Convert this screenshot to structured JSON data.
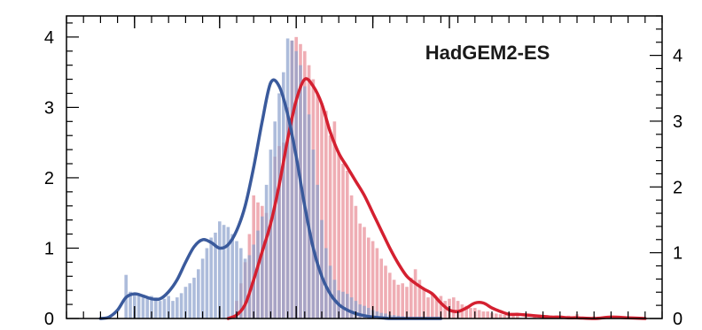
{
  "chart_data": {
    "type": "bar",
    "title": "HadGEM2-ES",
    "xlabel": "",
    "ylabel": "",
    "ylim": [
      0,
      4.3
    ],
    "y_right_lim": [
      0,
      4.6
    ],
    "y_ticks": [
      0,
      1,
      2,
      3,
      4
    ],
    "y_tick_labels": [
      "0",
      "1",
      "2",
      "3",
      "4"
    ],
    "y_right_ticks": [
      0,
      1,
      2,
      3,
      4
    ],
    "y_right_tick_labels": [
      "0",
      "1",
      "2",
      "3",
      "4"
    ],
    "xlim": [
      0,
      35
    ],
    "x_ticks_major": [
      4,
      9,
      13.5,
      18,
      22.5
    ],
    "x_ticks_minor_step": 1,
    "grid": false,
    "colors": {
      "red_series": "#d42030",
      "red_bars": "#e88a94",
      "blue_series": "#3a5a9c",
      "blue_bars": "#8aa0cc",
      "frame": "#000000"
    },
    "series": [
      {
        "kind": "histogram",
        "color_key": "blue",
        "x": [
          3.5,
          3.75,
          4,
          4.25,
          4.5,
          4.75,
          5,
          5.25,
          5.5,
          5.75,
          6,
          6.25,
          6.5,
          6.75,
          7,
          7.25,
          7.5,
          7.75,
          8,
          8.25,
          8.5,
          8.75,
          9,
          9.25,
          9.5,
          9.75,
          10,
          10.25,
          10.5,
          10.75,
          11,
          11.25,
          11.5,
          11.75,
          12,
          12.25,
          12.5,
          12.75,
          13,
          13.25,
          13.5,
          13.75,
          14,
          14.25,
          14.5,
          14.75,
          15,
          15.25,
          15.5,
          15.75,
          16,
          16.25,
          16.5,
          16.75,
          17,
          17.25,
          17.5,
          17.75,
          18,
          18.25,
          18.5,
          18.75,
          19,
          19.25,
          19.5,
          19.75,
          20
        ],
        "values": [
          0.62,
          0.38,
          0.35,
          0.32,
          0.3,
          0.28,
          0.32,
          0.3,
          0.25,
          0.28,
          0.32,
          0.25,
          0.3,
          0.36,
          0.45,
          0.5,
          0.58,
          0.7,
          0.85,
          1.0,
          1.15,
          1.22,
          1.38,
          1.33,
          1.3,
          1.2,
          1.1,
          1.0,
          0.85,
          0.9,
          1.05,
          1.25,
          1.45,
          1.9,
          2.4,
          2.8,
          3.2,
          3.5,
          3.98,
          3.95,
          3.8,
          3.6,
          3.3,
          2.9,
          2.4,
          1.9,
          1.4,
          1.0,
          0.75,
          0.55,
          0.4,
          0.38,
          0.35,
          0.3,
          0.25,
          0.2,
          0.18,
          0.15,
          0.12,
          0.1,
          0.08,
          0.07,
          0.05,
          0.05,
          0.04,
          0.03,
          0.02
        ]
      },
      {
        "kind": "histogram",
        "color_key": "red",
        "x": [
          10,
          10.25,
          10.5,
          10.75,
          11,
          11.25,
          11.5,
          11.75,
          12,
          12.25,
          12.5,
          12.75,
          13,
          13.25,
          13.5,
          13.75,
          14,
          14.25,
          14.5,
          14.75,
          15,
          15.25,
          15.5,
          15.75,
          16,
          16.25,
          16.5,
          16.75,
          17,
          17.25,
          17.5,
          17.75,
          18,
          18.25,
          18.5,
          18.75,
          19,
          19.25,
          19.5,
          19.75,
          20,
          20.25,
          20.5,
          20.75,
          21,
          21.25,
          21.5,
          21.75,
          22,
          22.25,
          22.5,
          22.75,
          23,
          23.25,
          23.5,
          23.75,
          24,
          24.25,
          24.5,
          24.75,
          25,
          25.25,
          25.5,
          25.75,
          26,
          26.25,
          26.5,
          27,
          27.5,
          28,
          28.5,
          29,
          29.5,
          30,
          31,
          32
        ],
        "values": [
          0.25,
          0.5,
          0.8,
          1.2,
          1.75,
          1.65,
          1.6,
          1.5,
          1.4,
          2.3,
          2.45,
          2.5,
          3.0,
          3.95,
          4.0,
          3.9,
          3.8,
          3.6,
          3.4,
          3.2,
          3.05,
          2.95,
          2.6,
          2.8,
          2.35,
          2.2,
          2.1,
          1.75,
          1.6,
          1.35,
          1.3,
          1.15,
          1.1,
          1.0,
          0.85,
          0.75,
          0.65,
          0.55,
          0.48,
          0.5,
          0.45,
          0.58,
          0.7,
          0.55,
          0.42,
          0.3,
          0.35,
          0.3,
          0.32,
          0.25,
          0.28,
          0.3,
          0.25,
          0.2,
          0.18,
          0.15,
          0.15,
          0.12,
          0.1,
          0.1,
          0.08,
          0.07,
          0.06,
          0.05,
          0.04,
          0.05,
          0.04,
          0.04,
          0.03,
          0.03,
          0.03,
          0.02,
          0.04,
          0.06,
          0.03,
          0.02
        ]
      },
      {
        "kind": "kde",
        "color_key": "red",
        "x": [
          9.5,
          10,
          10.5,
          11,
          11.5,
          12,
          12.5,
          13,
          13.5,
          14,
          14.5,
          15,
          15.5,
          16,
          16.5,
          17,
          17.5,
          18,
          18.5,
          19,
          19.5,
          20,
          20.5,
          21,
          21.5,
          22,
          22.5,
          23,
          23.5,
          24,
          24.5,
          25,
          25.5,
          26,
          26.5,
          27,
          27.5,
          28,
          28.5,
          29,
          29.5,
          30,
          31,
          32,
          33,
          34
        ],
        "values": [
          0.0,
          0.05,
          0.2,
          0.55,
          0.95,
          1.35,
          1.9,
          2.55,
          3.1,
          3.4,
          3.3,
          3.05,
          2.65,
          2.35,
          2.15,
          1.95,
          1.75,
          1.5,
          1.25,
          1.0,
          0.78,
          0.6,
          0.5,
          0.42,
          0.35,
          0.22,
          0.12,
          0.1,
          0.15,
          0.22,
          0.22,
          0.15,
          0.1,
          0.06,
          0.06,
          0.05,
          0.04,
          0.03,
          0.02,
          0.02,
          0.01,
          0.01,
          0.0,
          0.02,
          0.01,
          0.0
        ]
      },
      {
        "kind": "kde",
        "color_key": "blue",
        "x": [
          2,
          2.5,
          3,
          3.5,
          4,
          4.5,
          5,
          5.5,
          6,
          6.5,
          7,
          7.5,
          8,
          8.5,
          9,
          9.5,
          10,
          10.5,
          11,
          11.5,
          12,
          12.5,
          13,
          13.5,
          14,
          14.5,
          15,
          15.5,
          16,
          16.5,
          17,
          17.5,
          18,
          18.5,
          19,
          19.5,
          20,
          21,
          22
        ],
        "values": [
          0.0,
          0.02,
          0.12,
          0.3,
          0.35,
          0.32,
          0.28,
          0.28,
          0.38,
          0.55,
          0.8,
          1.02,
          1.12,
          1.08,
          1.0,
          1.05,
          1.25,
          1.6,
          2.15,
          2.8,
          3.35,
          3.3,
          2.9,
          2.3,
          1.6,
          1.0,
          0.6,
          0.35,
          0.2,
          0.12,
          0.07,
          0.04,
          0.02,
          0.01,
          0.0,
          0.0,
          0.0,
          0.0,
          0.0
        ]
      }
    ]
  }
}
